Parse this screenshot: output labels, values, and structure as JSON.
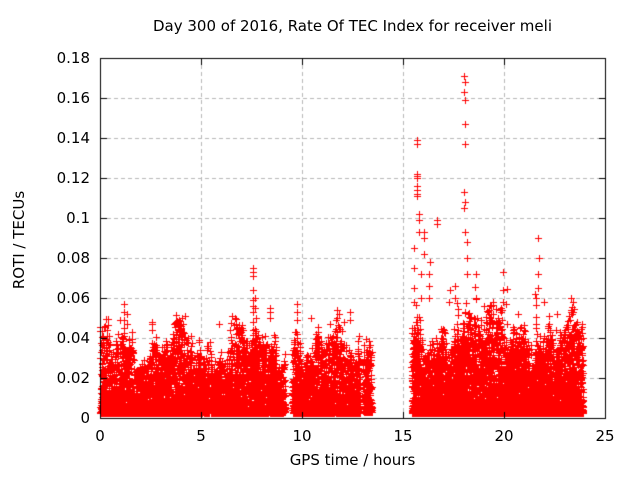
{
  "chart_data": {
    "type": "scatter",
    "title": "Day 300 of 2016, Rate Of TEC Index for receiver meli",
    "xlabel": "GPS time / hours",
    "ylabel": "ROTI / TECUs",
    "xlim": [
      0,
      25
    ],
    "ylim": [
      0,
      0.18
    ],
    "xticks": [
      0,
      5,
      10,
      15,
      20,
      25
    ],
    "xtick_labels": [
      "0",
      "5",
      "10",
      "15",
      "20",
      "25"
    ],
    "yticks": [
      0,
      0.02,
      0.04,
      0.06,
      0.08,
      0.1,
      0.12,
      0.14,
      0.16,
      0.18
    ],
    "ytick_labels": [
      "0",
      "0.02",
      "0.04",
      "0.06",
      "0.08",
      "0.1",
      "0.12",
      "0.14",
      "0.16",
      "0.18"
    ],
    "legend": null,
    "background": "#ffffff",
    "axis_color": "#000000",
    "grid": {
      "show": true,
      "color": "#b8b8b8",
      "dash": [
        4,
        3
      ]
    },
    "marker": {
      "shape": "plus",
      "size": 7,
      "color": "#ff0000"
    },
    "render": {
      "seed": 73
    },
    "data_segments": [
      {
        "t_start": 0.02,
        "t_end": 9.18,
        "points_per_hour": 520,
        "v_floor": 0.0025,
        "band_height": 0.034,
        "waves": [
          [
            1.9,
            0.5,
            0.22
          ],
          [
            4.7,
            1.6,
            0.16
          ],
          [
            11.3,
            3.1,
            0.12
          ]
        ],
        "bursts_per_hour": 3.0,
        "burst_peak_min": 0.032,
        "burst_peak_scale": 0.007,
        "burst_peak_max": 0.062,
        "hot_zones": [
          [
            7.3,
            8.7
          ]
        ]
      },
      {
        "t_start": 9.5,
        "t_end": 12.87,
        "points_per_hour": 540,
        "v_floor": 0.0025,
        "band_height": 0.034,
        "waves": [
          [
            2.3,
            0.2,
            0.2
          ],
          [
            5.9,
            1.1,
            0.15
          ],
          [
            12.1,
            2.6,
            0.12
          ]
        ],
        "bursts_per_hour": 3.5,
        "burst_peak_min": 0.032,
        "burst_peak_scale": 0.006,
        "burst_peak_max": 0.055,
        "hot_zones": []
      },
      {
        "t_start": 13.03,
        "t_end": 13.45,
        "points_per_hour": 480,
        "v_floor": 0.003,
        "band_height": 0.03,
        "waves": [
          [
            2.0,
            0.0,
            0.15
          ]
        ],
        "bursts_per_hour": 2.0,
        "burst_peak_min": 0.03,
        "burst_peak_scale": 0.004,
        "burst_peak_max": 0.042,
        "hot_zones": []
      },
      {
        "t_start": 15.45,
        "t_end": 23.92,
        "points_per_hour": 640,
        "v_floor": 0.0025,
        "band_height": 0.04,
        "waves": [
          [
            1.3,
            1.8,
            0.2
          ],
          [
            4.9,
            0.4,
            0.15
          ],
          [
            10.7,
            2.2,
            0.12
          ]
        ],
        "bursts_per_hour": 6.0,
        "burst_peak_min": 0.034,
        "burst_peak_scale": 0.009,
        "burst_peak_max": 0.075,
        "hot_zones": [
          [
            15.45,
            18.6
          ],
          [
            19.8,
            22.4
          ]
        ]
      }
    ],
    "spike_columns": [
      {
        "t": 1.2,
        "values": [
          0.057,
          0.053,
          0.049,
          0.045
        ]
      },
      {
        "t": 1.35,
        "values": [
          0.052,
          0.047
        ]
      },
      {
        "t": 2.6,
        "values": [
          0.048,
          0.047,
          0.044
        ]
      },
      {
        "t": 5.9,
        "values": [
          0.047
        ]
      },
      {
        "t": 7.0,
        "values": [
          0.045
        ]
      },
      {
        "t": 7.57,
        "values": [
          0.075,
          0.073,
          0.071,
          0.064,
          0.059,
          0.056,
          0.053
        ]
      },
      {
        "t": 7.68,
        "values": [
          0.06,
          0.055
        ]
      },
      {
        "t": 8.42,
        "values": [
          0.055,
          0.053,
          0.05
        ]
      },
      {
        "t": 9.75,
        "values": [
          0.057,
          0.053,
          0.049
        ]
      },
      {
        "t": 10.45,
        "values": [
          0.05
        ]
      },
      {
        "t": 11.7,
        "values": [
          0.054,
          0.05
        ]
      },
      {
        "t": 12.1,
        "values": [
          0.048
        ]
      },
      {
        "t": 12.4,
        "values": [
          0.053,
          0.049
        ]
      },
      {
        "t": 15.55,
        "values": [
          0.085,
          0.075,
          0.065,
          0.058
        ]
      },
      {
        "t": 15.7,
        "values": [
          0.139,
          0.137,
          0.122,
          0.121,
          0.12,
          0.116,
          0.114,
          0.112,
          0.111
        ]
      },
      {
        "t": 15.78,
        "values": [
          0.102,
          0.099,
          0.093
        ]
      },
      {
        "t": 15.9,
        "values": [
          0.072,
          0.06
        ]
      },
      {
        "t": 16.05,
        "values": [
          0.093,
          0.09,
          0.082
        ]
      },
      {
        "t": 16.3,
        "values": [
          0.078,
          0.072,
          0.066,
          0.06
        ]
      },
      {
        "t": 16.7,
        "values": [
          0.099,
          0.097
        ]
      },
      {
        "t": 17.3,
        "values": [
          0.064,
          0.058
        ]
      },
      {
        "t": 17.55,
        "values": [
          0.066,
          0.06
        ]
      },
      {
        "t": 18.05,
        "values": [
          0.171,
          0.168,
          0.163,
          0.159,
          0.147,
          0.137,
          0.113,
          0.108,
          0.105,
          0.093
        ]
      },
      {
        "t": 18.15,
        "values": [
          0.088,
          0.08,
          0.072
        ]
      },
      {
        "t": 18.6,
        "values": [
          0.06
        ]
      },
      {
        "t": 19.0,
        "values": [
          0.056
        ]
      },
      {
        "t": 19.95,
        "values": [
          0.073,
          0.064,
          0.058
        ]
      },
      {
        "t": 20.7,
        "values": [
          0.052
        ]
      },
      {
        "t": 21.7,
        "values": [
          0.09,
          0.08,
          0.072,
          0.065
        ]
      },
      {
        "t": 22.0,
        "values": [
          0.058
        ]
      },
      {
        "t": 22.6,
        "values": [
          0.052,
          0.044
        ]
      }
    ]
  }
}
